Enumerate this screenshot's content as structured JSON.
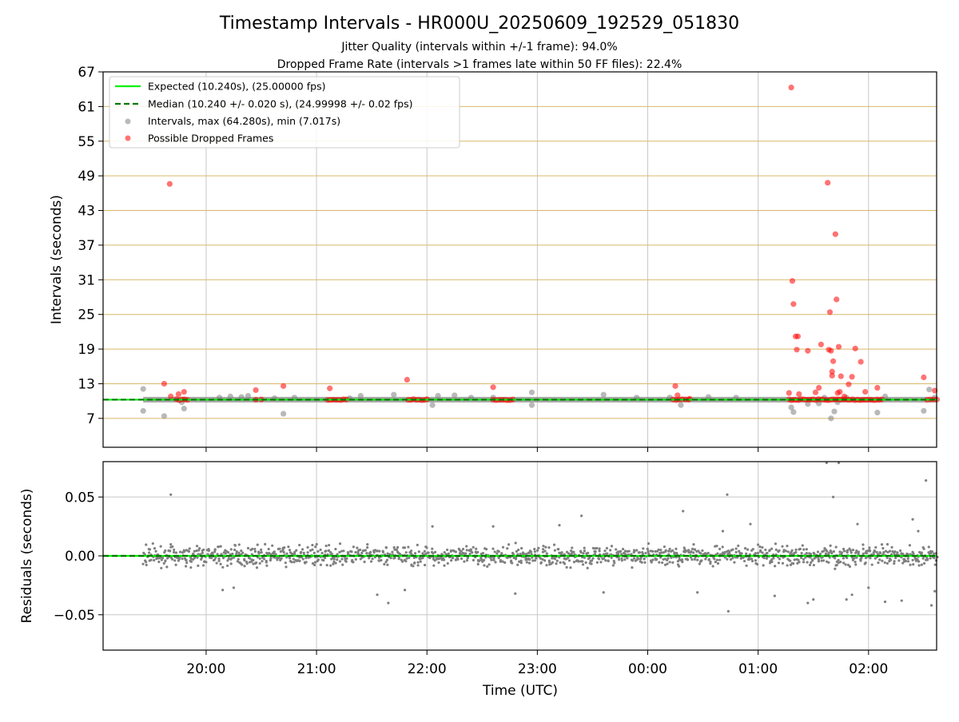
{
  "figure": {
    "title": "Timestamp Intervals - HR000U_20250609_192529_051830",
    "subtitle_1": "Jitter Quality (intervals within +/-1 frame): 94.0%",
    "subtitle_2": "Dropped Frame Rate (intervals >1 frames late within 50 FF files): 22.4%"
  },
  "colors": {
    "expected": "#00ee00",
    "median": "#007700",
    "intervals": "#808080",
    "dropped": "#ff0000",
    "hgrid_top": "#d9b86a",
    "grid": "#c8c8c8"
  },
  "chart_data": [
    {
      "type": "scatter",
      "ylabel": "Intervals (seconds)",
      "ylim": [
        2.0,
        67.0
      ],
      "yticks": [
        7,
        13,
        19,
        25,
        31,
        37,
        43,
        49,
        55,
        61,
        67
      ],
      "xlim": [
        19.0667,
        2.6167
      ],
      "legend_position": "top-left",
      "legend": [
        "Expected (10.240s), (25.00000 fps)",
        "Median (10.240 +/- 0.020 s), (24.99998 +/- 0.02 fps)",
        "Intervals, max (64.280s), min (7.017s)",
        "Possible Dropped Frames"
      ],
      "expected": 10.24,
      "median": 10.24,
      "intervals_band": {
        "x_start": 19.43,
        "x_end": 2.62,
        "y": 10.24
      },
      "intervals_outliers": [
        [
          19.43,
          12.1
        ],
        [
          19.43,
          8.3
        ],
        [
          19.62,
          7.4
        ],
        [
          19.78,
          9.8
        ],
        [
          19.8,
          8.7
        ],
        [
          20.12,
          10.6
        ],
        [
          20.22,
          10.8
        ],
        [
          20.32,
          10.7
        ],
        [
          20.38,
          10.9
        ],
        [
          20.62,
          10.5
        ],
        [
          20.7,
          7.8
        ],
        [
          20.8,
          10.6
        ],
        [
          21.3,
          10.5
        ],
        [
          21.4,
          10.9
        ],
        [
          21.7,
          11.1
        ],
        [
          22.05,
          9.3
        ],
        [
          22.1,
          10.9
        ],
        [
          22.25,
          11.0
        ],
        [
          22.4,
          10.6
        ],
        [
          22.6,
          10.6
        ],
        [
          22.95,
          11.5
        ],
        [
          22.95,
          9.3
        ],
        [
          23.6,
          11.1
        ],
        [
          23.9,
          10.6
        ],
        [
          0.2,
          10.6
        ],
        [
          0.3,
          9.3
        ],
        [
          0.55,
          10.7
        ],
        [
          0.8,
          10.6
        ],
        [
          1.3,
          8.9
        ],
        [
          1.32,
          8.1
        ],
        [
          1.45,
          9.5
        ],
        [
          1.55,
          9.6
        ],
        [
          1.6,
          10.6
        ],
        [
          1.66,
          7.0
        ],
        [
          1.69,
          8.2
        ],
        [
          1.72,
          9.8
        ],
        [
          1.8,
          10.6
        ],
        [
          2.08,
          8.0
        ],
        [
          2.15,
          10.8
        ],
        [
          2.5,
          8.3
        ],
        [
          2.55,
          12.0
        ],
        [
          2.6,
          10.6
        ]
      ],
      "dropped_segments": [
        [
          19.73,
          19.83
        ],
        [
          20.45,
          20.5
        ],
        [
          21.1,
          21.27
        ],
        [
          21.83,
          22.0
        ],
        [
          22.6,
          22.78
        ],
        [
          0.23,
          0.37
        ],
        [
          1.28,
          2.12
        ],
        [
          2.53,
          2.62
        ]
      ],
      "dropped_points": [
        [
          19.62,
          13.0
        ],
        [
          19.67,
          47.6
        ],
        [
          19.68,
          10.8
        ],
        [
          19.75,
          11.2
        ],
        [
          19.8,
          11.6
        ],
        [
          20.45,
          11.9
        ],
        [
          20.7,
          12.6
        ],
        [
          21.12,
          12.2
        ],
        [
          21.82,
          13.7
        ],
        [
          22.6,
          12.4
        ],
        [
          0.25,
          12.6
        ],
        [
          0.27,
          11.0
        ],
        [
          0.38,
          10.4
        ],
        [
          1.28,
          11.4
        ],
        [
          1.3,
          64.3
        ],
        [
          1.31,
          30.8
        ],
        [
          1.32,
          26.8
        ],
        [
          1.34,
          21.2
        ],
        [
          1.36,
          21.2
        ],
        [
          1.35,
          18.9
        ],
        [
          1.37,
          11.2
        ],
        [
          1.45,
          18.7
        ],
        [
          1.52,
          11.5
        ],
        [
          1.55,
          12.3
        ],
        [
          1.57,
          19.8
        ],
        [
          1.63,
          47.8
        ],
        [
          1.65,
          25.4
        ],
        [
          1.64,
          18.9
        ],
        [
          1.66,
          18.7
        ],
        [
          1.67,
          15.1
        ],
        [
          1.67,
          14.4
        ],
        [
          1.68,
          16.9
        ],
        [
          1.7,
          38.9
        ],
        [
          1.71,
          27.6
        ],
        [
          1.72,
          11.4
        ],
        [
          1.73,
          19.4
        ],
        [
          1.74,
          11.6
        ],
        [
          1.75,
          14.3
        ],
        [
          1.78,
          10.8
        ],
        [
          1.82,
          12.9
        ],
        [
          1.85,
          14.2
        ],
        [
          1.88,
          19.1
        ],
        [
          1.93,
          16.8
        ],
        [
          1.97,
          11.6
        ],
        [
          2.08,
          12.3
        ],
        [
          2.5,
          14.1
        ],
        [
          2.6,
          11.8
        ]
      ]
    },
    {
      "type": "scatter",
      "ylabel": "Residuals (seconds)",
      "xlabel": "Time (UTC)",
      "ylim": [
        -0.08,
        0.08
      ],
      "yticks": [
        0.05,
        0.0,
        -0.05
      ],
      "ytick_labels": [
        "0.05",
        "0.00",
        "−0.05"
      ],
      "xlim": [
        19.0667,
        2.6167
      ],
      "xticks": [
        20,
        21,
        22,
        23,
        0,
        1,
        2
      ],
      "xtick_labels": [
        "20:00",
        "21:00",
        "22:00",
        "23:00",
        "00:00",
        "01:00",
        "02:00"
      ],
      "residuals_range": {
        "x_start": 19.43,
        "x_end": 2.62
      },
      "residual_outliers": [
        [
          19.68,
          0.052
        ],
        [
          20.15,
          -0.029
        ],
        [
          20.25,
          -0.027
        ],
        [
          21.55,
          -0.033
        ],
        [
          21.65,
          -0.04
        ],
        [
          21.8,
          -0.029
        ],
        [
          22.05,
          0.025
        ],
        [
          22.6,
          0.025
        ],
        [
          22.8,
          -0.032
        ],
        [
          23.2,
          0.026
        ],
        [
          23.4,
          0.034
        ],
        [
          23.6,
          -0.031
        ],
        [
          0.32,
          0.038
        ],
        [
          0.45,
          -0.031
        ],
        [
          0.68,
          0.021
        ],
        [
          0.72,
          0.052
        ],
        [
          0.73,
          -0.047
        ],
        [
          0.93,
          0.027
        ],
        [
          1.15,
          -0.034
        ],
        [
          1.45,
          -0.04
        ],
        [
          1.5,
          -0.037
        ],
        [
          1.62,
          0.079
        ],
        [
          1.68,
          0.05
        ],
        [
          1.73,
          0.079
        ],
        [
          1.8,
          -0.037
        ],
        [
          1.85,
          -0.033
        ],
        [
          1.9,
          0.027
        ],
        [
          2.0,
          -0.027
        ],
        [
          2.15,
          -0.039
        ],
        [
          2.3,
          -0.038
        ],
        [
          2.4,
          0.031
        ],
        [
          2.45,
          0.021
        ],
        [
          2.52,
          0.064
        ],
        [
          2.57,
          -0.042
        ],
        [
          2.6,
          -0.03
        ]
      ]
    }
  ]
}
